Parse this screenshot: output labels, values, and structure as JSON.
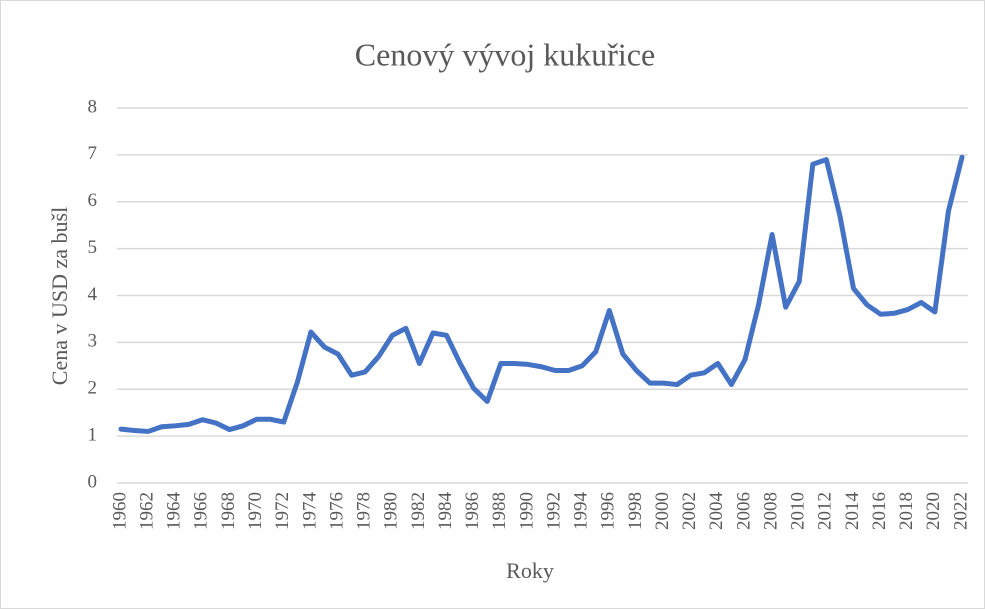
{
  "chart_data": {
    "type": "line",
    "title": "Cenový vývoj kukuřice",
    "x_label": "Roky",
    "y_label": "Cena v USD za bušl",
    "x": [
      1960,
      1961,
      1962,
      1963,
      1964,
      1965,
      1966,
      1967,
      1968,
      1969,
      1970,
      1971,
      1972,
      1973,
      1974,
      1975,
      1976,
      1977,
      1978,
      1979,
      1980,
      1981,
      1982,
      1983,
      1984,
      1985,
      1986,
      1987,
      1988,
      1989,
      1990,
      1991,
      1992,
      1993,
      1994,
      1995,
      1996,
      1997,
      1998,
      1999,
      2000,
      2001,
      2002,
      2003,
      2004,
      2005,
      2006,
      2007,
      2008,
      2009,
      2010,
      2011,
      2012,
      2013,
      2014,
      2015,
      2016,
      2017,
      2018,
      2019,
      2020,
      2021,
      2022
    ],
    "series": [
      {
        "name": "Cena",
        "color": "#4472c4",
        "values": [
          1.15,
          1.12,
          1.1,
          1.2,
          1.22,
          1.25,
          1.35,
          1.28,
          1.14,
          1.22,
          1.36,
          1.36,
          1.3,
          2.15,
          3.22,
          2.9,
          2.75,
          2.3,
          2.37,
          2.7,
          3.15,
          3.3,
          2.55,
          3.2,
          3.15,
          2.55,
          2.02,
          1.74,
          2.55,
          2.55,
          2.53,
          2.48,
          2.4,
          2.4,
          2.5,
          2.8,
          3.68,
          2.75,
          2.4,
          2.13,
          2.13,
          2.1,
          2.3,
          2.35,
          2.55,
          2.1,
          2.63,
          3.8,
          5.3,
          3.75,
          4.3,
          6.8,
          6.9,
          5.7,
          4.15,
          3.8,
          3.6,
          3.62,
          3.7,
          3.85,
          3.65,
          5.8,
          6.95
        ]
      }
    ],
    "xlim": [
      1960,
      2022
    ],
    "xticks": [
      1960,
      1962,
      1964,
      1966,
      1968,
      1970,
      1972,
      1974,
      1976,
      1978,
      1980,
      1982,
      1984,
      1986,
      1988,
      1990,
      1992,
      1994,
      1996,
      1998,
      2000,
      2002,
      2004,
      2006,
      2008,
      2010,
      2012,
      2014,
      2016,
      2018,
      2020,
      2022
    ],
    "ylim": [
      0,
      8
    ],
    "yticks": [
      0,
      1,
      2,
      3,
      4,
      5,
      6,
      7,
      8
    ],
    "grid": true
  }
}
